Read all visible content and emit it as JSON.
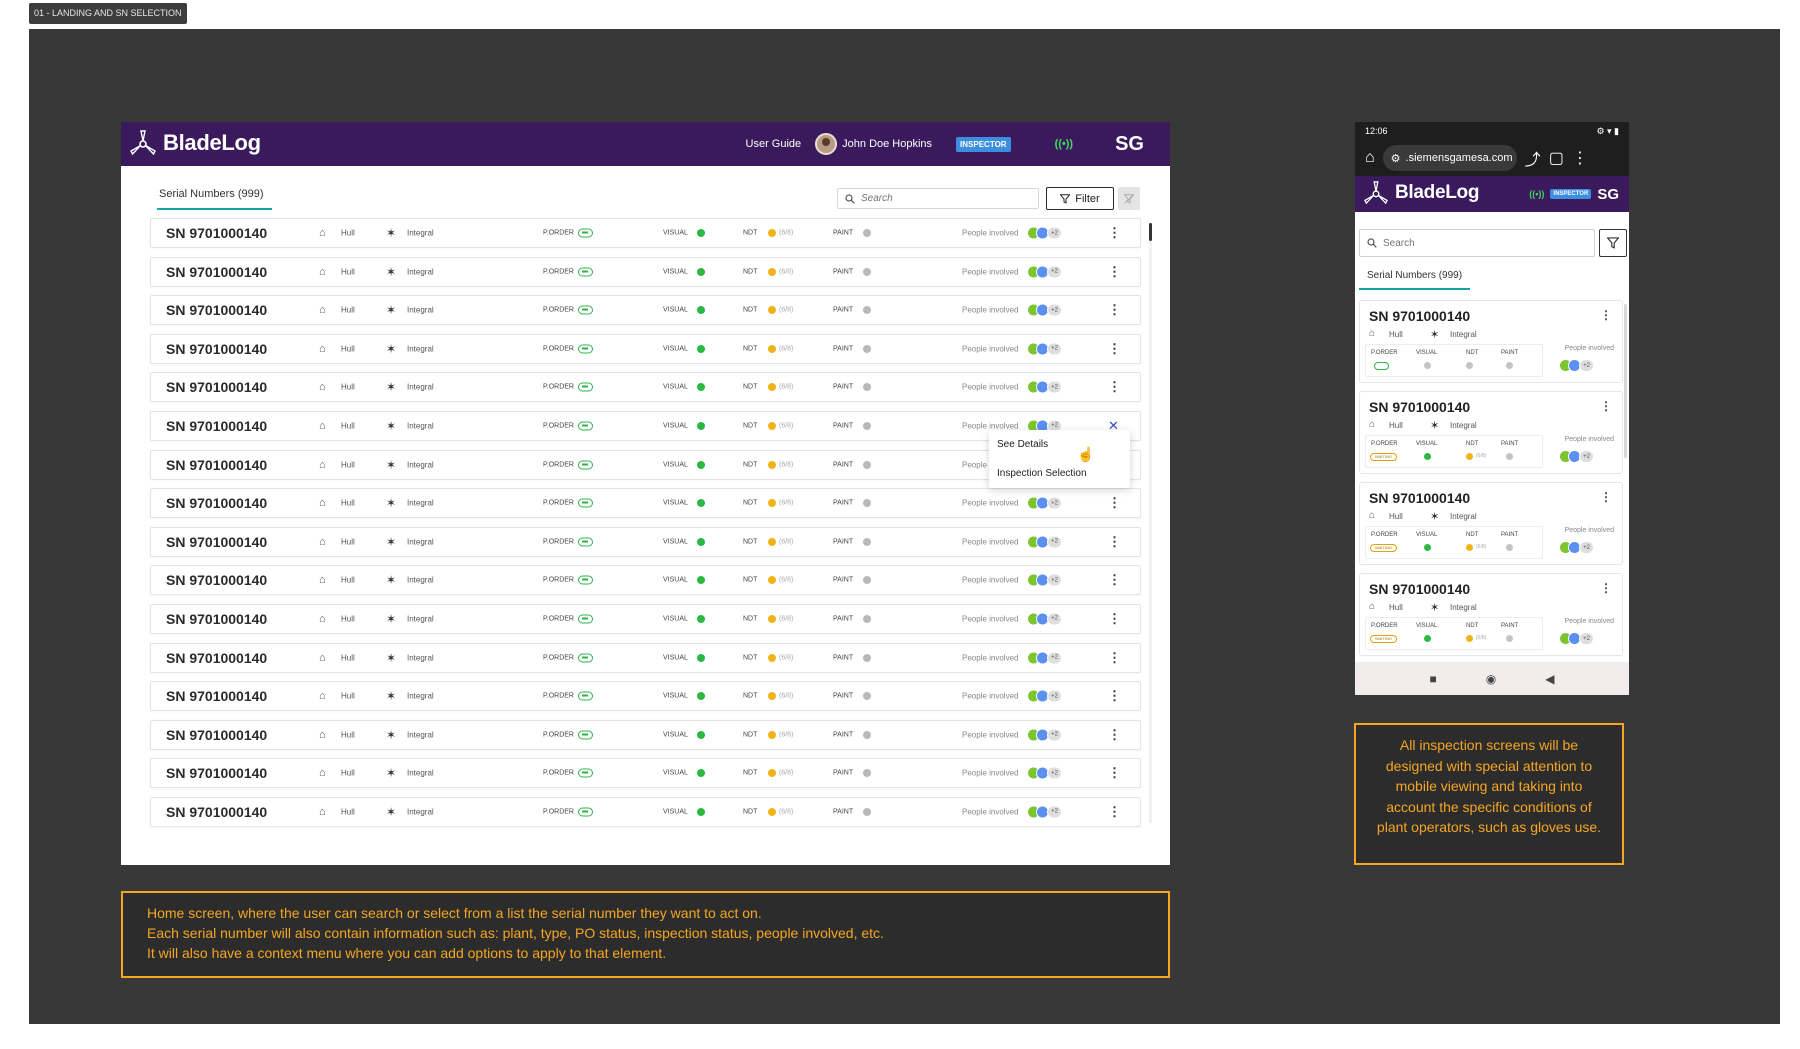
{
  "frame_tag": "01 - LANDING AND SN SELECTION",
  "app": {
    "name": "BladeLog",
    "brand_color": "#3a1a5c",
    "accent": "#18a3a3",
    "user_guide": "User Guide",
    "user_name": "John Doe Hopkins",
    "role": "INSPECTOR",
    "signal": "((•))",
    "brand_mark": "SG"
  },
  "desktop": {
    "tab_label": "Serial Numbers (999)",
    "search_placeholder": "Search",
    "filter_label": "Filter",
    "labels": {
      "porder": "P.ORDER",
      "visual": "VISUAL",
      "ndt": "NDT",
      "paint": "PAINT",
      "people": "People involved"
    },
    "rows": [
      {
        "sn": "SN 9701000140",
        "plant": "Hull",
        "type": "Integral",
        "ndt_count": "(6/8)",
        "extra_people": "+2"
      },
      {
        "sn": "SN 9701000140",
        "plant": "Hull",
        "type": "Integral",
        "ndt_count": "(6/8)",
        "extra_people": "+2"
      },
      {
        "sn": "SN 9701000140",
        "plant": "Hull",
        "type": "Integral",
        "ndt_count": "(6/8)",
        "extra_people": "+2"
      },
      {
        "sn": "SN 9701000140",
        "plant": "Hull",
        "type": "Integral",
        "ndt_count": "(6/8)",
        "extra_people": "+2"
      },
      {
        "sn": "SN 9701000140",
        "plant": "Hull",
        "type": "Integral",
        "ndt_count": "(6/8)",
        "extra_people": "+2"
      },
      {
        "sn": "SN 9701000140",
        "plant": "Hull",
        "type": "Integral",
        "ndt_count": "(6/8)",
        "extra_people": "+2"
      },
      {
        "sn": "SN 9701000140",
        "plant": "Hull",
        "type": "Integral",
        "ndt_count": "(6/8)",
        "extra_people": "+2"
      },
      {
        "sn": "SN 9701000140",
        "plant": "Hull",
        "type": "Integral",
        "ndt_count": "(6/8)",
        "extra_people": "+2"
      },
      {
        "sn": "SN 9701000140",
        "plant": "Hull",
        "type": "Integral",
        "ndt_count": "(6/8)",
        "extra_people": "+2"
      },
      {
        "sn": "SN 9701000140",
        "plant": "Hull",
        "type": "Integral",
        "ndt_count": "(6/8)",
        "extra_people": "+2"
      },
      {
        "sn": "SN 9701000140",
        "plant": "Hull",
        "type": "Integral",
        "ndt_count": "(6/8)",
        "extra_people": "+2"
      },
      {
        "sn": "SN 9701000140",
        "plant": "Hull",
        "type": "Integral",
        "ndt_count": "(6/8)",
        "extra_people": "+2"
      },
      {
        "sn": "SN 9701000140",
        "plant": "Hull",
        "type": "Integral",
        "ndt_count": "(6/8)",
        "extra_people": "+2"
      },
      {
        "sn": "SN 9701000140",
        "plant": "Hull",
        "type": "Integral",
        "ndt_count": "(6/8)",
        "extra_people": "+2"
      },
      {
        "sn": "SN 9701000140",
        "plant": "Hull",
        "type": "Integral",
        "ndt_count": "(6/8)",
        "extra_people": "+2"
      },
      {
        "sn": "SN 9701000140",
        "plant": "Hull",
        "type": "Integral",
        "ndt_count": "(6/8)",
        "extra_people": "+2"
      }
    ],
    "context_menu": {
      "open_row_index": 5,
      "items": [
        "See Details",
        "Inspection Selection"
      ]
    },
    "status_colors": {
      "ok": "#2db843",
      "pending": "#f0b416",
      "none": "#b9b9b9"
    }
  },
  "mobile": {
    "time": "12:06",
    "status_icons": "⚙ ▾ ▮",
    "url": ".siemensgamesa.com",
    "search_placeholder": "Search",
    "tab_label": "Serial Numbers (999)",
    "cards": [
      {
        "sn": "SN 9701000140",
        "plant": "Hull",
        "type": "Integral",
        "porder": "ok",
        "ndt_count": "",
        "extra_people": "+2"
      },
      {
        "sn": "SN 9701000140",
        "plant": "Hull",
        "type": "Integral",
        "porder": "WAITING",
        "ndt_count": "(6/8)",
        "extra_people": "+2"
      },
      {
        "sn": "SN 9701000140",
        "plant": "Hull",
        "type": "Integral",
        "porder": "WAITING",
        "ndt_count": "(6/8)",
        "extra_people": "+2"
      },
      {
        "sn": "SN 9701000140",
        "plant": "Hull",
        "type": "Integral",
        "porder": "WAITING",
        "ndt_count": "(6/8)",
        "extra_people": "+2"
      }
    ]
  },
  "notes": {
    "desktop_lines": [
      "Home screen, where the user can search or select from a list the serial number they want to act on.",
      "Each serial number will also contain information such as: plant, type, PO status, inspection status, people involved, etc.",
      "It will also have a context menu where you can add options to apply to that element."
    ],
    "mobile": "All inspection screens will be designed with special attention to mobile viewing and taking into account the specific conditions of plant operators, such as gloves use."
  }
}
